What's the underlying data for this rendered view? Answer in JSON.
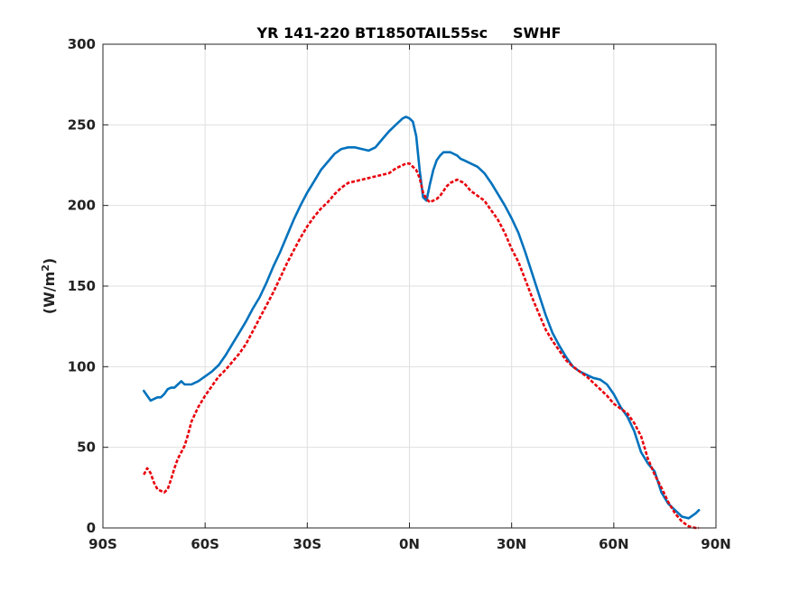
{
  "chart_data": {
    "type": "line",
    "title": "YR 141-220 BT1850TAIL55sc     SWHF",
    "xlabel": "",
    "ylabel": "(W/m",
    "ylabel_sup": "2",
    "ylabel_close": ")",
    "xlim": [
      -90,
      90
    ],
    "ylim": [
      0,
      300
    ],
    "x_ticks": [
      -90,
      -60,
      -30,
      0,
      30,
      60,
      90
    ],
    "x_tick_labels": [
      "90S",
      "60S",
      "30S",
      "0N",
      "30N",
      "60N",
      "90N"
    ],
    "y_ticks": [
      0,
      50,
      100,
      150,
      200,
      250,
      300
    ],
    "y_tick_labels": [
      "0",
      "50",
      "100",
      "150",
      "200",
      "250",
      "300"
    ],
    "grid": true,
    "series": [
      {
        "color": "#0072BD",
        "style": "solid",
        "x": [
          -78,
          -77,
          -76,
          -75,
          -74,
          -73,
          -72,
          -71,
          -70,
          -69,
          -68,
          -67,
          -66,
          -65,
          -64,
          -63,
          -62,
          -60,
          -58,
          -56,
          -54,
          -52,
          -50,
          -48,
          -46,
          -44,
          -42,
          -40,
          -38,
          -36,
          -34,
          -32,
          -30,
          -28,
          -26,
          -24,
          -22,
          -20,
          -18,
          -16,
          -14,
          -12,
          -10,
          -8,
          -6,
          -4,
          -2,
          -1,
          0,
          1,
          2,
          3,
          4,
          5,
          6,
          7,
          8,
          9,
          10,
          11,
          12,
          13,
          14,
          15,
          16,
          18,
          20,
          22,
          24,
          26,
          28,
          30,
          32,
          34,
          36,
          38,
          40,
          42,
          44,
          46,
          48,
          50,
          52,
          54,
          56,
          58,
          60,
          62,
          64,
          66,
          68,
          70,
          72,
          74,
          76,
          78,
          80,
          82,
          84,
          85
        ],
        "y": [
          85,
          82,
          79,
          80,
          81,
          81,
          83,
          86,
          87,
          87,
          89,
          91,
          89,
          89,
          89,
          90,
          91,
          94,
          97,
          101,
          107,
          114,
          121,
          128,
          136,
          143,
          152,
          162,
          171,
          181,
          191,
          200,
          208,
          215,
          222,
          227,
          232,
          235,
          236,
          236,
          235,
          234,
          236,
          241,
          246,
          250,
          254,
          255,
          254,
          252,
          243,
          222,
          205,
          203,
          213,
          222,
          228,
          231,
          233,
          233,
          233,
          232,
          231,
          229,
          228,
          226,
          224,
          220,
          214,
          207,
          200,
          192,
          183,
          171,
          158,
          145,
          132,
          121,
          113,
          106,
          100,
          97,
          95,
          93,
          92,
          89,
          83,
          75,
          69,
          60,
          47,
          40,
          35,
          22,
          15,
          11,
          7,
          6,
          9,
          11
        ]
      },
      {
        "color": "#E8000B",
        "style": "dashed",
        "x": [
          -78,
          -77,
          -76,
          -75,
          -74,
          -73,
          -72,
          -71,
          -70,
          -69,
          -68,
          -67,
          -66,
          -65,
          -64,
          -62,
          -60,
          -58,
          -56,
          -54,
          -52,
          -50,
          -48,
          -46,
          -44,
          -42,
          -40,
          -38,
          -36,
          -34,
          -32,
          -30,
          -28,
          -26,
          -24,
          -22,
          -20,
          -18,
          -16,
          -14,
          -12,
          -10,
          -8,
          -6,
          -4,
          -2,
          -1,
          0,
          1,
          2,
          3,
          4,
          5,
          6,
          7,
          8,
          9,
          10,
          11,
          12,
          13,
          14,
          15,
          16,
          18,
          20,
          22,
          24,
          26,
          28,
          30,
          32,
          34,
          36,
          38,
          40,
          42,
          44,
          46,
          48,
          50,
          52,
          54,
          56,
          58,
          60,
          62,
          64,
          66,
          68,
          70,
          72,
          74,
          76,
          78,
          80,
          82,
          84,
          85
        ],
        "y": [
          33,
          37,
          34,
          28,
          24,
          23,
          22,
          24,
          30,
          37,
          43,
          47,
          51,
          58,
          66,
          75,
          82,
          88,
          94,
          98,
          103,
          108,
          114,
          122,
          130,
          138,
          146,
          155,
          164,
          172,
          180,
          187,
          193,
          198,
          202,
          207,
          211,
          214,
          215,
          216,
          217,
          218,
          219,
          220,
          223,
          225,
          226,
          226,
          224,
          222,
          217,
          208,
          204,
          202,
          203,
          204,
          206,
          209,
          212,
          214,
          215,
          216,
          215,
          214,
          209,
          206,
          203,
          197,
          191,
          183,
          173,
          165,
          154,
          143,
          133,
          123,
          116,
          110,
          104,
          100,
          97,
          94,
          90,
          86,
          82,
          77,
          74,
          71,
          65,
          57,
          43,
          33,
          25,
          16,
          9,
          4,
          1,
          0,
          0
        ]
      }
    ]
  }
}
